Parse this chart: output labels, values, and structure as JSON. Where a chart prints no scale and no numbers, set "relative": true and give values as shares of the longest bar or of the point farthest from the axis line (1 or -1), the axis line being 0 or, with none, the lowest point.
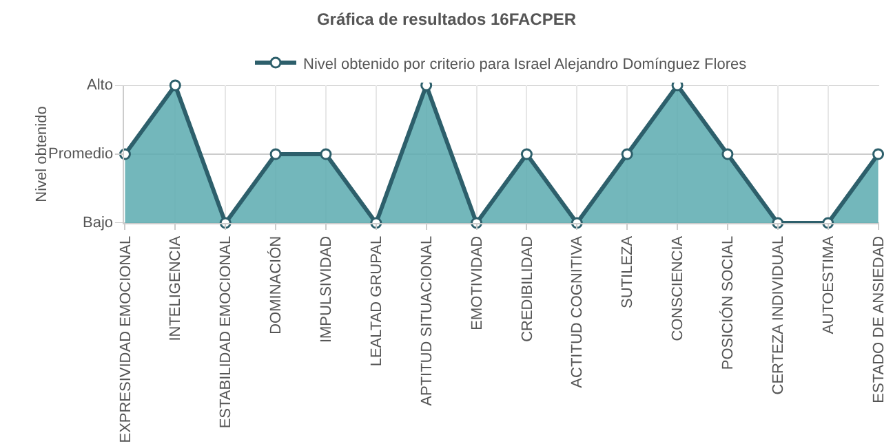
{
  "chart_data": {
    "type": "area",
    "title": "Gráfica de resultados 16FACPER",
    "ylabel": "Nivel obtenido",
    "categories": [
      "EXPRESIVIDAD EMOCIONAL",
      "INTELIGENCIA",
      "ESTABILIDAD EMOCIONAL",
      "DOMINACIÓN",
      "IMPULSIVIDAD",
      "LEALTAD GRUPAL",
      "APTITUD SITUACIONAL",
      "EMOTIVIDAD",
      "CREDIBILIDAD",
      "ACTITUD COGNITIVA",
      "SUTILEZA",
      "CONSCIENCIA",
      "POSICIÓN SOCIAL",
      "CERTEZA INDIVIDUAL",
      "AUTOESTIMA",
      "ESTADO DE ANSIEDAD"
    ],
    "series": [
      {
        "name": "Nivel obtenido por criterio para Israel Alejandro Domínguez Flores",
        "color": "#2d5f6b",
        "values": [
          0.5,
          1,
          0,
          0.5,
          0.5,
          0,
          1,
          0,
          0.5,
          0,
          0.5,
          1,
          0.5,
          0,
          0,
          0.5
        ]
      }
    ],
    "relative": true,
    "annotations": [
      "Bajo",
      "Promedio",
      "Alto"
    ],
    "grid": true,
    "legend": "top",
    "marker": "circle"
  }
}
